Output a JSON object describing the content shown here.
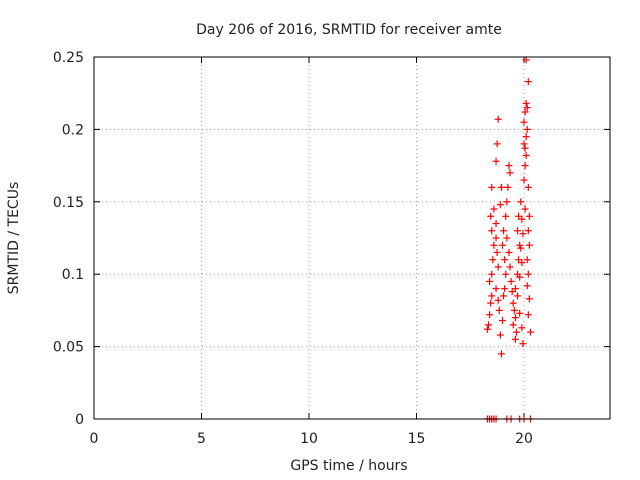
{
  "chart_data": {
    "type": "scatter",
    "title": "Day 206 of 2016, SRMTID for receiver amte",
    "xlabel": "GPS time / hours",
    "ylabel": "SRMTID / TECUs",
    "xlim": [
      0,
      24
    ],
    "ylim": [
      0,
      0.25
    ],
    "xticks": [
      0,
      5,
      10,
      15,
      20
    ],
    "yticks": [
      0,
      0.05,
      0.1,
      0.15,
      0.2,
      0.25
    ],
    "xtick_labels": [
      "0",
      "5",
      "10",
      "15",
      "20"
    ],
    "ytick_labels": [
      "0",
      "0.05",
      "0.1",
      "0.15",
      "0.2",
      "0.25"
    ],
    "grid": true,
    "marker": "+",
    "series_color": "#ff0000",
    "points": [
      [
        18.3,
        0.0
      ],
      [
        18.4,
        0.0
      ],
      [
        18.5,
        0.0
      ],
      [
        18.6,
        0.0
      ],
      [
        18.7,
        0.0
      ],
      [
        19.2,
        0.0
      ],
      [
        19.4,
        0.0
      ],
      [
        19.8,
        0.0
      ],
      [
        20.0,
        0.0
      ],
      [
        20.3,
        0.0
      ],
      [
        18.3,
        0.062
      ],
      [
        18.35,
        0.065
      ],
      [
        18.4,
        0.072
      ],
      [
        18.45,
        0.08
      ],
      [
        18.5,
        0.085
      ],
      [
        18.4,
        0.095
      ],
      [
        18.5,
        0.1
      ],
      [
        18.55,
        0.11
      ],
      [
        18.6,
        0.12
      ],
      [
        18.5,
        0.13
      ],
      [
        18.45,
        0.14
      ],
      [
        18.6,
        0.145
      ],
      [
        18.5,
        0.16
      ],
      [
        18.7,
        0.135
      ],
      [
        18.7,
        0.125
      ],
      [
        18.75,
        0.115
      ],
      [
        18.8,
        0.105
      ],
      [
        18.7,
        0.09
      ],
      [
        18.8,
        0.082
      ],
      [
        18.85,
        0.075
      ],
      [
        18.7,
        0.178
      ],
      [
        18.75,
        0.19
      ],
      [
        18.8,
        0.207
      ],
      [
        18.9,
        0.148
      ],
      [
        18.95,
        0.16
      ],
      [
        18.9,
        0.058
      ],
      [
        18.95,
        0.045
      ],
      [
        19.0,
        0.068
      ],
      [
        19.05,
        0.085
      ],
      [
        19.1,
        0.09
      ],
      [
        19.15,
        0.1
      ],
      [
        19.1,
        0.11
      ],
      [
        19.0,
        0.12
      ],
      [
        19.05,
        0.13
      ],
      [
        19.15,
        0.14
      ],
      [
        19.2,
        0.15
      ],
      [
        19.25,
        0.16
      ],
      [
        19.3,
        0.175
      ],
      [
        19.35,
        0.17
      ],
      [
        19.2,
        0.125
      ],
      [
        19.3,
        0.115
      ],
      [
        19.35,
        0.105
      ],
      [
        19.4,
        0.095
      ],
      [
        19.45,
        0.088
      ],
      [
        19.5,
        0.08
      ],
      [
        19.55,
        0.075
      ],
      [
        19.6,
        0.07
      ],
      [
        19.5,
        0.065
      ],
      [
        19.6,
        0.055
      ],
      [
        19.65,
        0.06
      ],
      [
        19.6,
        0.09
      ],
      [
        19.7,
        0.1
      ],
      [
        19.75,
        0.11
      ],
      [
        19.8,
        0.12
      ],
      [
        19.7,
        0.13
      ],
      [
        19.75,
        0.14
      ],
      [
        19.85,
        0.15
      ],
      [
        19.9,
        0.138
      ],
      [
        19.95,
        0.128
      ],
      [
        19.85,
        0.118
      ],
      [
        19.9,
        0.108
      ],
      [
        19.8,
        0.098
      ],
      [
        19.7,
        0.085
      ],
      [
        19.8,
        0.073
      ],
      [
        19.9,
        0.063
      ],
      [
        19.95,
        0.052
      ],
      [
        20.0,
        0.165
      ],
      [
        20.05,
        0.175
      ],
      [
        20.1,
        0.182
      ],
      [
        20.0,
        0.19
      ],
      [
        20.05,
        0.187
      ],
      [
        20.1,
        0.195
      ],
      [
        20.15,
        0.2
      ],
      [
        20.0,
        0.205
      ],
      [
        20.05,
        0.212
      ],
      [
        20.1,
        0.218
      ],
      [
        20.15,
        0.215
      ],
      [
        20.2,
        0.233
      ],
      [
        20.1,
        0.248
      ],
      [
        20.2,
        0.16
      ],
      [
        20.25,
        0.14
      ],
      [
        20.2,
        0.13
      ],
      [
        20.25,
        0.12
      ],
      [
        20.15,
        0.11
      ],
      [
        20.2,
        0.1
      ],
      [
        20.25,
        0.083
      ],
      [
        20.3,
        0.06
      ],
      [
        20.2,
        0.072
      ],
      [
        20.15,
        0.092
      ],
      [
        20.05,
        0.145
      ]
    ]
  }
}
